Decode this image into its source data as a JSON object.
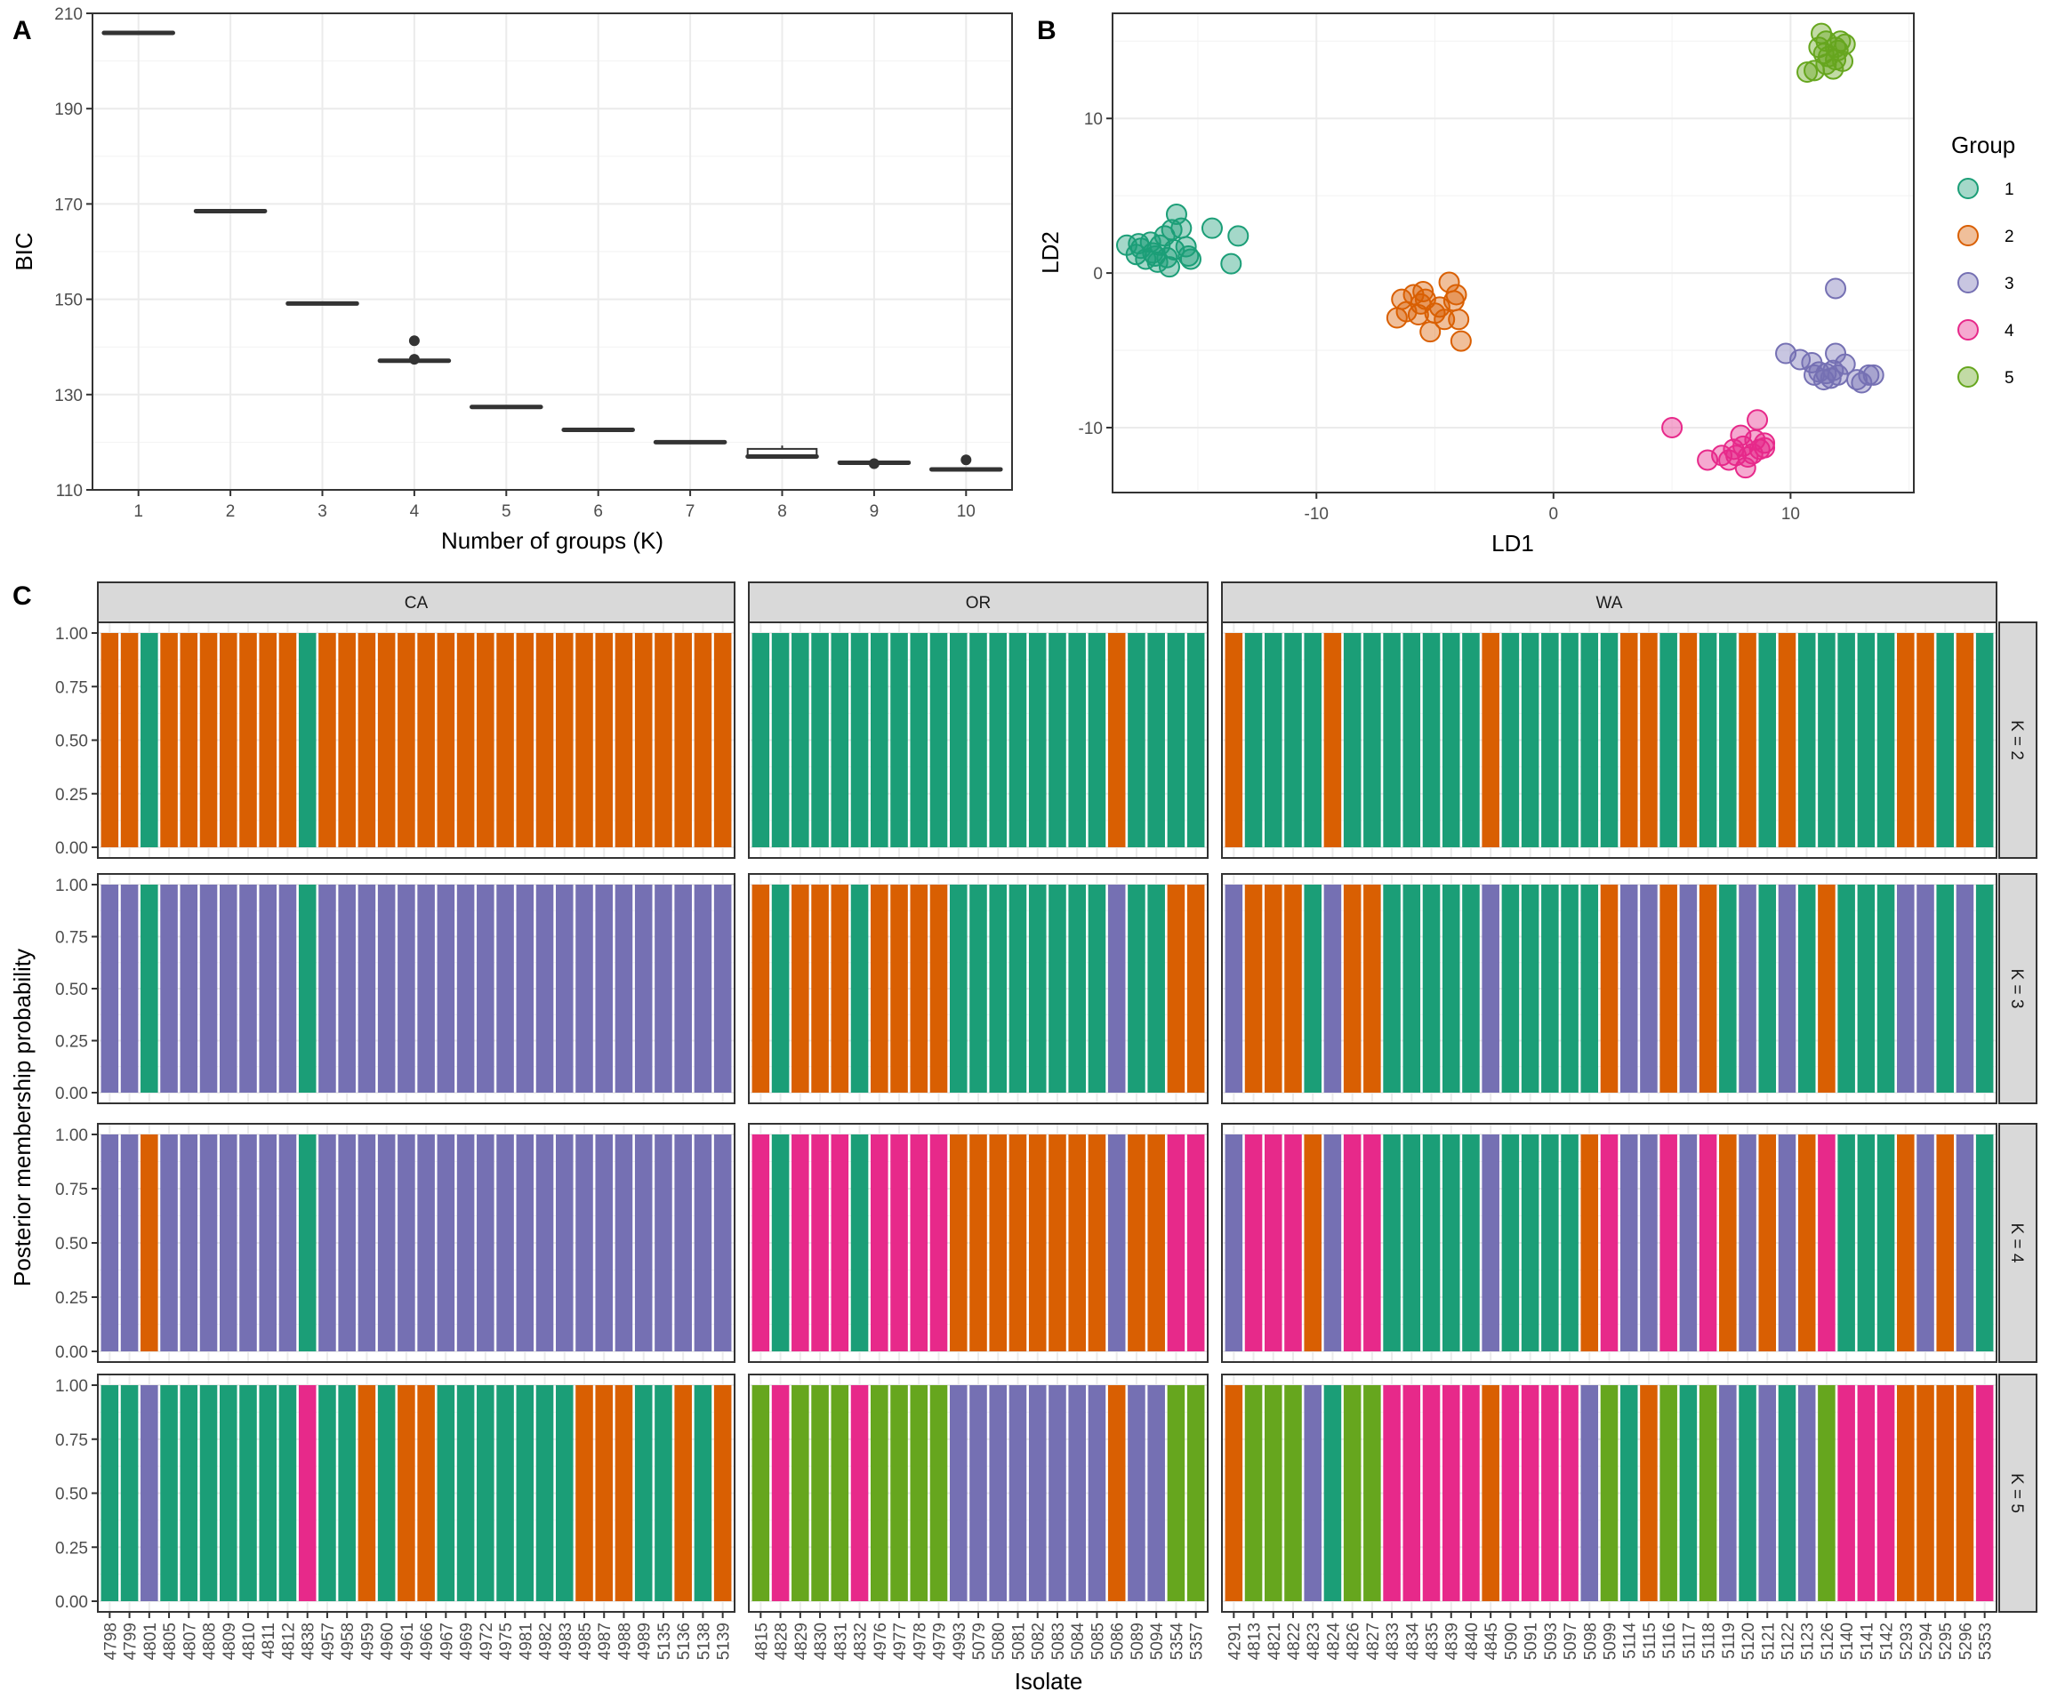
{
  "colors": {
    "T": "#1b9e77",
    "O": "#d95f02",
    "P": "#7570b3",
    "K": "#e7298a",
    "L": "#66a61e"
  },
  "chart_data": [
    {
      "panel": "A",
      "type": "boxplot",
      "xlabel": "Number of groups (K)",
      "ylabel": "BIC",
      "ylim": [
        110,
        210
      ],
      "yticks": [
        110,
        130,
        150,
        170,
        190,
        210
      ],
      "categories": [
        "1",
        "2",
        "3",
        "4",
        "5",
        "6",
        "7",
        "8",
        "9",
        "10"
      ],
      "boxes": [
        {
          "k": 1,
          "q1": 205.9,
          "median": 205.9,
          "q3": 205.9,
          "whisker_low": 205.9,
          "whisker_high": 205.9,
          "outliers": []
        },
        {
          "k": 2,
          "q1": 168.5,
          "median": 168.5,
          "q3": 168.5,
          "whisker_low": 168.5,
          "whisker_high": 168.5,
          "outliers": []
        },
        {
          "k": 3,
          "q1": 149.1,
          "median": 149.1,
          "q3": 149.1,
          "whisker_low": 149.1,
          "whisker_high": 149.1,
          "outliers": []
        },
        {
          "k": 4,
          "q1": 137.1,
          "median": 137.1,
          "q3": 137.1,
          "whisker_low": 137.1,
          "whisker_high": 137.1,
          "outliers": [
            141.3,
            137.4
          ]
        },
        {
          "k": 5,
          "q1": 127.4,
          "median": 127.4,
          "q3": 127.4,
          "whisker_low": 127.4,
          "whisker_high": 127.4,
          "outliers": []
        },
        {
          "k": 6,
          "q1": 122.6,
          "median": 122.6,
          "q3": 122.6,
          "whisker_low": 122.6,
          "whisker_high": 122.6,
          "outliers": []
        },
        {
          "k": 7,
          "q1": 120.0,
          "median": 120.0,
          "q3": 120.0,
          "whisker_low": 120.0,
          "whisker_high": 120.0,
          "outliers": []
        },
        {
          "k": 8,
          "q1": 116.8,
          "median": 117.0,
          "q3": 118.6,
          "whisker_low": 116.8,
          "whisker_high": 119.3,
          "outliers": []
        },
        {
          "k": 9,
          "q1": 115.7,
          "median": 115.7,
          "q3": 115.7,
          "whisker_low": 115.7,
          "whisker_high": 115.7,
          "outliers": [
            115.5
          ]
        },
        {
          "k": 10,
          "q1": 114.3,
          "median": 114.3,
          "q3": 114.3,
          "whisker_low": 114.3,
          "whisker_high": 114.3,
          "outliers": [
            116.3
          ]
        }
      ]
    },
    {
      "panel": "B",
      "type": "scatter",
      "xlabel": "LD1",
      "ylabel": "LD2",
      "xlim": [
        -18.6,
        15.2
      ],
      "ylim": [
        -14.2,
        16.8
      ],
      "xticks": [
        -10,
        0,
        10
      ],
      "yticks": [
        -10,
        0,
        10
      ],
      "legend": {
        "title": "Group",
        "position": "right",
        "entries": [
          "1",
          "2",
          "3",
          "4",
          "5"
        ]
      },
      "series": [
        {
          "name": "1",
          "color": "#1b9e77",
          "points": [
            [
              -18.0,
              1.8
            ],
            [
              -17.6,
              1.2
            ],
            [
              -17.4,
              1.6
            ],
            [
              -17.2,
              0.9
            ],
            [
              -17.0,
              2.0
            ],
            [
              -16.9,
              1.3
            ],
            [
              -16.7,
              0.7
            ],
            [
              -16.6,
              1.8
            ],
            [
              -16.4,
              2.4
            ],
            [
              -16.3,
              1.0
            ],
            [
              -16.2,
              0.4
            ],
            [
              -16.1,
              2.8
            ],
            [
              -16.0,
              1.5
            ],
            [
              -15.9,
              3.8
            ],
            [
              -15.7,
              2.9
            ],
            [
              -15.5,
              1.7
            ],
            [
              -15.4,
              1.1
            ],
            [
              -15.3,
              0.9
            ],
            [
              -14.4,
              2.9
            ],
            [
              -13.3,
              2.4
            ],
            [
              -13.6,
              0.6
            ],
            [
              -17.5,
              1.9
            ],
            [
              -16.8,
              1.1
            ]
          ]
        },
        {
          "name": "2",
          "color": "#d95f02",
          "points": [
            [
              -6.6,
              -2.9
            ],
            [
              -6.4,
              -1.7
            ],
            [
              -6.2,
              -2.5
            ],
            [
              -5.9,
              -1.4
            ],
            [
              -5.7,
              -2.7
            ],
            [
              -5.5,
              -1.2
            ],
            [
              -5.4,
              -1.7
            ],
            [
              -5.2,
              -3.8
            ],
            [
              -5.0,
              -2.6
            ],
            [
              -4.8,
              -2.2
            ],
            [
              -4.6,
              -3.0
            ],
            [
              -4.4,
              -0.6
            ],
            [
              -4.2,
              -1.8
            ],
            [
              -4.0,
              -3.0
            ],
            [
              -3.9,
              -4.4
            ],
            [
              -4.1,
              -1.4
            ],
            [
              -5.6,
              -2.0
            ]
          ]
        },
        {
          "name": "3",
          "color": "#7570b3",
          "points": [
            [
              9.8,
              -5.2
            ],
            [
              10.4,
              -5.6
            ],
            [
              10.9,
              -5.8
            ],
            [
              11.0,
              -6.6
            ],
            [
              11.4,
              -6.9
            ],
            [
              11.5,
              -6.5
            ],
            [
              11.7,
              -6.8
            ],
            [
              11.8,
              -6.3
            ],
            [
              11.9,
              -5.2
            ],
            [
              12.0,
              -6.6
            ],
            [
              12.3,
              -5.9
            ],
            [
              12.8,
              -6.9
            ],
            [
              13.0,
              -7.1
            ],
            [
              13.3,
              -6.6
            ],
            [
              13.5,
              -6.6
            ],
            [
              11.9,
              -1.0
            ],
            [
              11.2,
              -6.4
            ]
          ]
        },
        {
          "name": "4",
          "color": "#e7298a",
          "points": [
            [
              5.0,
              -10.0
            ],
            [
              6.5,
              -12.1
            ],
            [
              7.1,
              -11.8
            ],
            [
              7.4,
              -12.1
            ],
            [
              7.6,
              -11.4
            ],
            [
              7.7,
              -11.8
            ],
            [
              7.9,
              -10.5
            ],
            [
              8.0,
              -11.2
            ],
            [
              8.1,
              -12.6
            ],
            [
              8.4,
              -11.7
            ],
            [
              8.5,
              -10.8
            ],
            [
              8.6,
              -9.5
            ],
            [
              8.7,
              -11.4
            ],
            [
              8.9,
              -11.0
            ],
            [
              8.9,
              -11.3
            ],
            [
              8.2,
              -11.9
            ]
          ]
        },
        {
          "name": "5",
          "color": "#66a61e",
          "points": [
            [
              10.7,
              13.0
            ],
            [
              11.0,
              13.1
            ],
            [
              11.2,
              14.6
            ],
            [
              11.3,
              15.5
            ],
            [
              11.4,
              14.2
            ],
            [
              11.5,
              13.5
            ],
            [
              11.6,
              14.0
            ],
            [
              11.8,
              13.2
            ],
            [
              11.9,
              13.8
            ],
            [
              12.0,
              14.4
            ],
            [
              12.1,
              15.0
            ],
            [
              12.3,
              14.8
            ],
            [
              12.2,
              13.7
            ],
            [
              11.5,
              15.0
            ],
            [
              11.9,
              14.6
            ]
          ]
        }
      ]
    },
    {
      "panel": "C",
      "type": "bar",
      "stacked": true,
      "xlabel": "Isolate",
      "ylabel": "Posterior membership probability",
      "ylim": [
        0,
        1
      ],
      "yticks": [
        "0.00",
        "0.25",
        "0.50",
        "0.75",
        "1.00"
      ],
      "legend_codes": {
        "T": "Group 1",
        "O": "Group 2",
        "P": "Group 3",
        "K": "Group 4",
        "L": "Group 5"
      },
      "rows": [
        "K = 2",
        "K = 3",
        "K = 4",
        "K = 5"
      ],
      "facets": [
        {
          "name": "CA",
          "isolates": [
            "4798",
            "4799",
            "4801",
            "4805",
            "4807",
            "4808",
            "4809",
            "4810",
            "4811",
            "4812",
            "4838",
            "4957",
            "4958",
            "4959",
            "4960",
            "4961",
            "4966",
            "4967",
            "4969",
            "4972",
            "4975",
            "4981",
            "4982",
            "4983",
            "4985",
            "4987",
            "4988",
            "4989",
            "5135",
            "5136",
            "5138",
            "5139"
          ],
          "assignments": [
            "OOTOOOOOOOTOOOOOOOOOOOOOOOOOOOOO",
            "PPTPPPPPPPTPPPPPPPPPPPPPPPPPPPPP",
            "PPOPPPPPPPTPPPPPPPPPPPPPPPPPPPPP",
            "TTPTTTTTTTKTTOTOOTTTTTTTOOOTTOTO"
          ]
        },
        {
          "name": "OR",
          "isolates": [
            "4815",
            "4828",
            "4829",
            "4830",
            "4831",
            "4832",
            "4976",
            "4977",
            "4978",
            "4979",
            "4993",
            "5079",
            "5080",
            "5081",
            "5082",
            "5083",
            "5084",
            "5085",
            "5086",
            "5089",
            "5094",
            "5354",
            "5357"
          ],
          "assignments": [
            "TTTTTTTTTTTTTTTTTTOTTTT",
            "OTOOOTOOOOTTTTTTTTPTTOO",
            "KTKKKTKKKKOOOOOOOOPOOKK",
            "LKLLLKLLLLPPPPPPPPOPPLL"
          ]
        },
        {
          "name": "WA",
          "isolates": [
            "4291",
            "4813",
            "4821",
            "4822",
            "4823",
            "4824",
            "4826",
            "4827",
            "4833",
            "4834",
            "4835",
            "4839",
            "4840",
            "4845",
            "5090",
            "5091",
            "5093",
            "5097",
            "5098",
            "5099",
            "5114",
            "5115",
            "5116",
            "5117",
            "5118",
            "5119",
            "5120",
            "5121",
            "5122",
            "5123",
            "5126",
            "5140",
            "5141",
            "5142",
            "5293",
            "5294",
            "5295",
            "5296",
            "5353"
          ],
          "assignments": [
            "OTTTTOTTTTTTTOTTTTTTOOTOTTOTOTTTTTOOTOT",
            "POOOTPOOTTTTTPTTTTTOPPOPOTPTPTOTTTPPTPT",
            "PKKKOPKKTTTTTPTTTTOKPPKPKOPOPOKTTTOPOPT",
            "OLLLPTLLKKKKKOKKKKPLTOLTLPTPTPLKKKOOOOK"
          ]
        }
      ]
    }
  ],
  "labels": {
    "panel_a": "A",
    "panel_b": "B",
    "panel_c": "C"
  }
}
